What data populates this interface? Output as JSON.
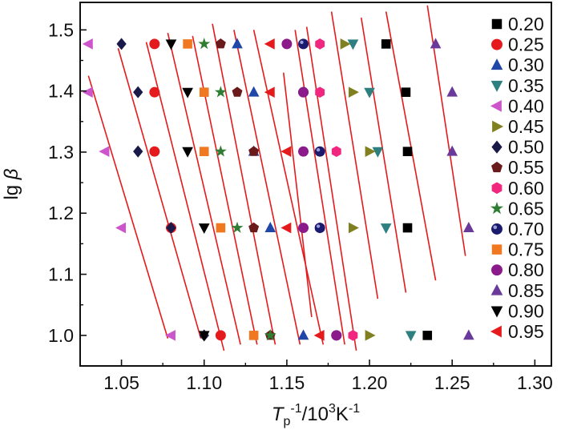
{
  "chart_data": {
    "type": "scatter",
    "title": "",
    "xlabel": {
      "main": "T",
      "sub": "p",
      "sup1": "-1",
      "mid": "/10",
      "sup2": "3",
      "end": "K",
      "sup3": "-1"
    },
    "ylabel": {
      "main": "lg ",
      "italic": "β"
    },
    "xlim": [
      1.025,
      1.31
    ],
    "ylim": [
      0.95,
      1.545
    ],
    "xticks": [
      1.05,
      1.1,
      1.15,
      1.2,
      1.25,
      1.3
    ],
    "xtick_labels": [
      "1.05",
      "1.10",
      "1.15",
      "1.20",
      "1.25",
      "1.30"
    ],
    "yticks": [
      1.0,
      1.1,
      1.2,
      1.3,
      1.4,
      1.5
    ],
    "ytick_labels": [
      "1.0",
      "1.1",
      "1.2",
      "1.3",
      "1.4",
      "1.5"
    ],
    "lg_beta_levels": [
      1.0,
      1.176,
      1.301,
      1.398,
      1.477
    ],
    "fit_line_color": "#e41a1c",
    "series": [
      {
        "name": "0.20",
        "marker": "square",
        "color": "#000000",
        "x": [
          1.235,
          1.223,
          1.223,
          1.222,
          1.21
        ]
      },
      {
        "name": "0.25",
        "marker": "circle",
        "color": "#e41a1c",
        "x": [
          1.11,
          1.08,
          1.07,
          1.07,
          1.07
        ]
      },
      {
        "name": "0.30",
        "marker": "triangle-up",
        "color": "#2046a8",
        "x": [
          1.16,
          1.14,
          1.13,
          1.13,
          1.12
        ]
      },
      {
        "name": "0.35",
        "marker": "triangle-down",
        "color": "#2e7f7f",
        "x": [
          1.225,
          1.21,
          1.205,
          1.2,
          1.19
        ]
      },
      {
        "name": "0.40",
        "marker": "triangle-left",
        "color": "#cc55cc",
        "x": [
          1.08,
          1.05,
          1.04,
          1.03,
          1.03
        ]
      },
      {
        "name": "0.45",
        "marker": "triangle-right",
        "color": "#808020",
        "x": [
          1.2,
          1.19,
          1.2,
          1.19,
          1.185
        ]
      },
      {
        "name": "0.50",
        "marker": "diamond",
        "color": "#1a1a4a",
        "x": [
          1.1,
          1.08,
          1.06,
          1.06,
          1.05
        ]
      },
      {
        "name": "0.55",
        "marker": "pentagon",
        "color": "#6a1a1a",
        "x": [
          1.14,
          1.13,
          1.13,
          1.12,
          1.11
        ]
      },
      {
        "name": "0.60",
        "marker": "hexagon",
        "color": "#f0267f",
        "x": [
          1.19,
          1.17,
          1.18,
          1.17,
          1.17
        ]
      },
      {
        "name": "0.65",
        "marker": "star",
        "color": "#2e7d32",
        "x": [
          1.14,
          1.12,
          1.11,
          1.11,
          1.1
        ]
      },
      {
        "name": "0.70",
        "marker": "sphere",
        "color": "#1a1a6e",
        "x": [
          1.18,
          1.17,
          1.17,
          1.16,
          1.16
        ]
      },
      {
        "name": "0.75",
        "marker": "square",
        "color": "#f07820",
        "x": [
          1.13,
          1.11,
          1.1,
          1.1,
          1.09
        ]
      },
      {
        "name": "0.80",
        "marker": "circle",
        "color": "#8b1a8b",
        "x": [
          1.18,
          1.16,
          1.16,
          1.16,
          1.15
        ]
      },
      {
        "name": "0.85",
        "marker": "triangle-up",
        "color": "#6a3a9a",
        "x": [
          1.26,
          1.26,
          1.25,
          1.25,
          1.24
        ]
      },
      {
        "name": "0.90",
        "marker": "triangle-down",
        "color": "#000000",
        "x": [
          1.1,
          1.1,
          1.09,
          1.09,
          1.08
        ]
      },
      {
        "name": "0.95",
        "marker": "triangle-left",
        "color": "#e41a1c",
        "x": [
          1.17,
          1.15,
          1.15,
          1.14,
          1.14
        ]
      }
    ],
    "fit_lines": [
      {
        "x1": 1.03,
        "y1": 1.425,
        "x2": 1.078,
        "y2": 0.995
      },
      {
        "x1": 1.048,
        "y1": 1.47,
        "x2": 1.098,
        "y2": 0.995
      },
      {
        "x1": 1.065,
        "y1": 1.48,
        "x2": 1.112,
        "y2": 0.975
      },
      {
        "x1": 1.078,
        "y1": 1.495,
        "x2": 1.122,
        "y2": 0.985
      },
      {
        "x1": 1.093,
        "y1": 1.49,
        "x2": 1.132,
        "y2": 0.985
      },
      {
        "x1": 1.105,
        "y1": 1.51,
        "x2": 1.143,
        "y2": 0.985
      },
      {
        "x1": 1.118,
        "y1": 1.5,
        "x2": 1.158,
        "y2": 0.985
      },
      {
        "x1": 1.13,
        "y1": 1.5,
        "x2": 1.172,
        "y2": 0.985
      },
      {
        "x1": 1.148,
        "y1": 1.43,
        "x2": 1.165,
        "y2": 1.03
      },
      {
        "x1": 1.155,
        "y1": 1.5,
        "x2": 1.185,
        "y2": 0.985
      },
      {
        "x1": 1.162,
        "y1": 1.505,
        "x2": 1.192,
        "y2": 0.975
      },
      {
        "x1": 1.177,
        "y1": 1.53,
        "x2": 1.205,
        "y2": 1.06
      },
      {
        "x1": 1.195,
        "y1": 1.52,
        "x2": 1.222,
        "y2": 1.07
      },
      {
        "x1": 1.21,
        "y1": 1.53,
        "x2": 1.24,
        "y2": 1.09
      },
      {
        "x1": 1.235,
        "y1": 1.54,
        "x2": 1.258,
        "y2": 1.13
      }
    ]
  }
}
